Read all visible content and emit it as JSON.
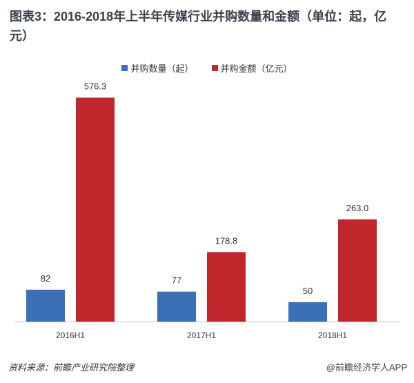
{
  "chart_data": {
    "type": "bar",
    "title": "图表3：2016-2018年上半年传媒行业并购数量和金额（单位：起，亿元）",
    "categories": [
      "2016H1",
      "2017H1",
      "2018H1"
    ],
    "series": [
      {
        "name": "并购数量（起）",
        "values": [
          82,
          77,
          50
        ],
        "labels": [
          "82",
          "77",
          "50"
        ],
        "color": "#3b6fb6"
      },
      {
        "name": "并购金额（亿元）",
        "values": [
          576.3,
          178.8,
          263.0
        ],
        "labels": [
          "576.3",
          "178.8",
          "263.0"
        ],
        "color": "#c0272d"
      }
    ],
    "ylim": [
      0,
      650
    ],
    "grid": false,
    "legend_position": "top-center"
  },
  "footer": {
    "source": "资料来源：前瞻产业研究院整理",
    "credit": "@前瞻经济学人APP"
  }
}
